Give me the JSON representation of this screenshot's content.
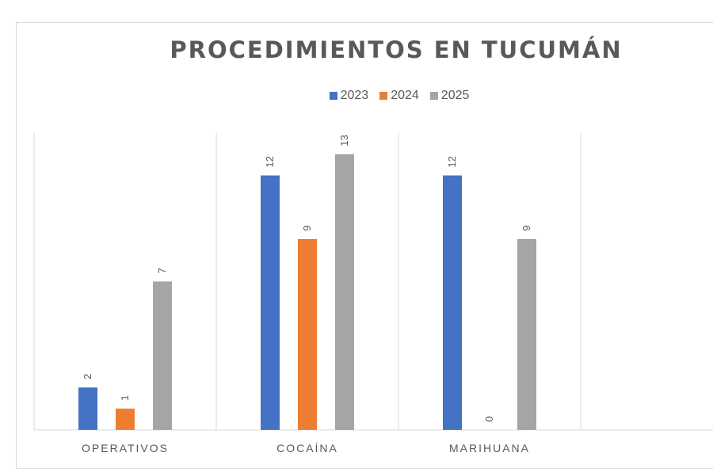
{
  "chart_data": {
    "type": "bar",
    "title": "PROCEDIMIENTOS EN TUCUMÁN",
    "categories": [
      "OPERATIVOS",
      "COCAÍNA",
      "MARIHUANA"
    ],
    "series": [
      {
        "name": "2023",
        "color": "#4472c4",
        "values": [
          2,
          12,
          12
        ]
      },
      {
        "name": "2024",
        "color": "#ed7d31",
        "values": [
          1,
          9,
          0
        ]
      },
      {
        "name": "2025",
        "color": "#a5a5a5",
        "values": [
          7,
          13,
          9
        ]
      }
    ],
    "ylim": [
      0,
      14
    ],
    "data_labels": true,
    "legend_position": "top",
    "grid": "vertical category separators"
  }
}
